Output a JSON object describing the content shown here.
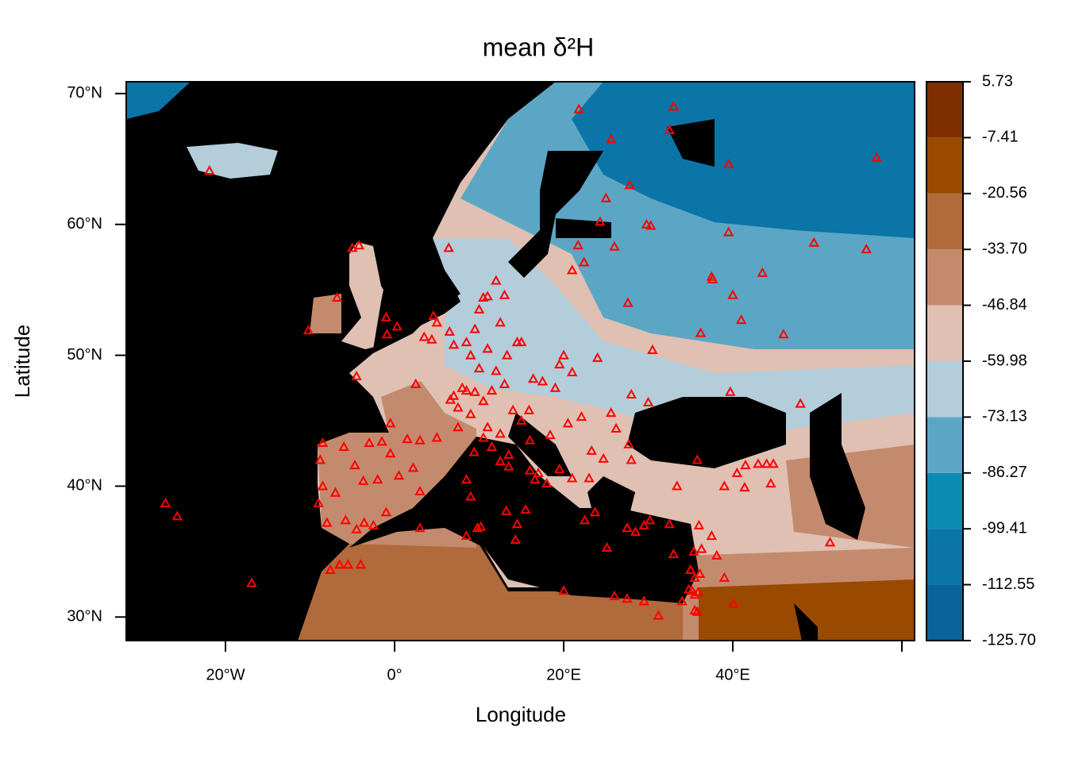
{
  "chart_data": {
    "type": "map",
    "title": "mean δ²H",
    "x_label": "Longitude",
    "y_label": "Latitude",
    "xlim": [
      -31.74,
      61.5
    ],
    "ylim": [
      28.2,
      70.9
    ],
    "xticks": [
      {
        "value": -20,
        "label": "20°W"
      },
      {
        "value": 0,
        "label": "0°"
      },
      {
        "value": 20,
        "label": "20°E"
      },
      {
        "value": 40,
        "label": "40°E"
      },
      {
        "value": 60,
        "label": null
      }
    ],
    "yticks": [
      {
        "value": 30,
        "label": "30°N"
      },
      {
        "value": 40,
        "label": "40°N"
      },
      {
        "value": 50,
        "label": "50°N"
      },
      {
        "value": 60,
        "label": "60°N"
      },
      {
        "value": 70,
        "label": "70°N"
      }
    ],
    "points": {
      "color": "#ff0000",
      "x": [
        -21.9,
        -27.1,
        -25.7,
        -16.9,
        -10.2,
        -6.8,
        -5,
        -4.2,
        -1,
        -0.9,
        0.3,
        -4.5,
        2.5,
        4.6,
        5,
        4.4,
        3.5,
        6.5,
        7,
        8.5,
        9.5,
        10,
        11,
        13,
        12,
        10.5,
        6.4,
        12.5,
        13.3,
        14.5,
        15,
        9,
        11,
        10,
        12,
        8,
        7,
        8.5,
        9.5,
        6.6,
        7.5,
        10.5,
        11.5,
        13,
        16.4,
        17.5,
        19.5,
        20,
        21,
        14,
        15,
        16,
        12.5,
        11,
        9,
        7.5,
        5,
        3,
        1.5,
        -0.5,
        -1.5,
        -0.5,
        -3,
        -6,
        -8.5,
        -8.8,
        -8.5,
        -7,
        -9,
        -8,
        -5.8,
        -4.5,
        -3.6,
        -3.7,
        -4.7,
        -2,
        0.5,
        2.2,
        3,
        -1,
        -2.5,
        -6.5,
        -7.6,
        -5.5,
        -4,
        3,
        8.5,
        9.8,
        10.2,
        14.3,
        14.5,
        13.2,
        15.5,
        16.6,
        17,
        18,
        16,
        12.5,
        13.5,
        9,
        8.5,
        9.4,
        11.5,
        10.5,
        13.5,
        19.5,
        21,
        23,
        22.5,
        23.7,
        25.1,
        27.5,
        28.5,
        29.5,
        30.2,
        33.4,
        32.5,
        36,
        35.4,
        33,
        36.1,
        35.5,
        35.2,
        35.5,
        34.8,
        35.9,
        35.5,
        35.8,
        34,
        35,
        36.3,
        37.5,
        38.1,
        39,
        40.1,
        29.5,
        31.2,
        27.5,
        26,
        20,
        24.3,
        25,
        27.8,
        25.6,
        21.8,
        33,
        32.5,
        39.5,
        57,
        29.8,
        21.7,
        22.4,
        26,
        21,
        27.6,
        30.3,
        37.5,
        36.2,
        37.6,
        40,
        39.5,
        43.5,
        41,
        46,
        49.6,
        55.8,
        39.7,
        48,
        30,
        28,
        30.5,
        24,
        22.1,
        25.6,
        26.2,
        23.3,
        24.7,
        28,
        27.7,
        35.8,
        41.5,
        43,
        44.8,
        44.5,
        40.5,
        39,
        51.5,
        41.4,
        44,
        20.5,
        18.4,
        15.9,
        19
      ],
      "y": [
        64.1,
        38.7,
        37.7,
        32.6,
        51.9,
        54.4,
        58.2,
        58.4,
        52.9,
        51.6,
        52.2,
        48.4,
        47.8,
        53,
        52.5,
        51.2,
        51.4,
        51.8,
        50.8,
        51,
        52,
        53.5,
        54.5,
        54.6,
        55.7,
        54.4,
        58.2,
        52.5,
        50,
        51,
        51,
        50,
        50.5,
        49,
        48.8,
        47.5,
        46.9,
        47.3,
        47.2,
        46.6,
        46,
        46.5,
        47.3,
        47.8,
        48.2,
        48,
        49.3,
        50,
        48.7,
        45.8,
        45,
        43.5,
        44,
        44.5,
        45.5,
        44.5,
        43.7,
        43.5,
        43.6,
        44.8,
        43.4,
        42.5,
        43.3,
        43,
        43.3,
        42,
        40,
        39.5,
        38.7,
        37.2,
        37.4,
        36.7,
        37.2,
        40.4,
        41.6,
        40.5,
        40.8,
        41.4,
        39.6,
        38,
        37,
        34,
        33.6,
        34,
        34,
        36.8,
        36.2,
        36.8,
        36.9,
        35.9,
        37.1,
        38.1,
        38.2,
        40.5,
        41,
        40.2,
        41.2,
        41.9,
        42.4,
        39.2,
        40.5,
        42.6,
        43,
        43.7,
        41.5,
        41.3,
        40.6,
        40.6,
        37.4,
        38,
        35.3,
        36.8,
        36.5,
        37,
        37.4,
        40,
        37.1,
        37,
        35,
        34.8,
        33.3,
        33,
        32,
        31.7,
        32.1,
        31.9,
        30.5,
        30.4,
        31.2,
        33.6,
        35.2,
        36.2,
        34.7,
        33,
        31,
        31.2,
        30.1,
        31.4,
        31.6,
        32,
        60.2,
        62,
        63,
        66.5,
        68.8,
        69,
        67.2,
        64.6,
        65.1,
        60,
        58.4,
        57.1,
        58.3,
        56.5,
        54,
        59.9,
        56,
        51.7,
        55.8,
        54.6,
        59.4,
        56.3,
        52.7,
        51.6,
        58.6,
        58.1,
        47.2,
        46.3,
        46.4,
        47,
        50.4,
        49.8,
        45.3,
        45.6,
        44.4,
        42.7,
        42.1,
        42,
        43.2,
        42,
        41.6,
        41.7,
        41.7,
        40.2,
        41,
        40,
        35.7,
        39.9,
        41.7,
        44.8,
        43.9,
        45.8,
        47.5
      ]
    },
    "colorbar": {
      "levels": [
        {
          "value": -125.7,
          "label": "-125.70"
        },
        -112.55,
        -99.41,
        -86.27,
        -73.13,
        -59.98,
        -46.84,
        {
          "value": -33.7,
          "label": "-33.70"
        },
        -20.56,
        -7.41,
        5.73
      ],
      "colors": [
        "#0b639c",
        "#0a75a6",
        "#0b8cb3",
        "#5ba6c4",
        "#b3cdda",
        "#dfc0b3",
        "#c48a6d",
        "#b06a3b",
        "#994a00",
        "#7f2e00"
      ]
    }
  }
}
